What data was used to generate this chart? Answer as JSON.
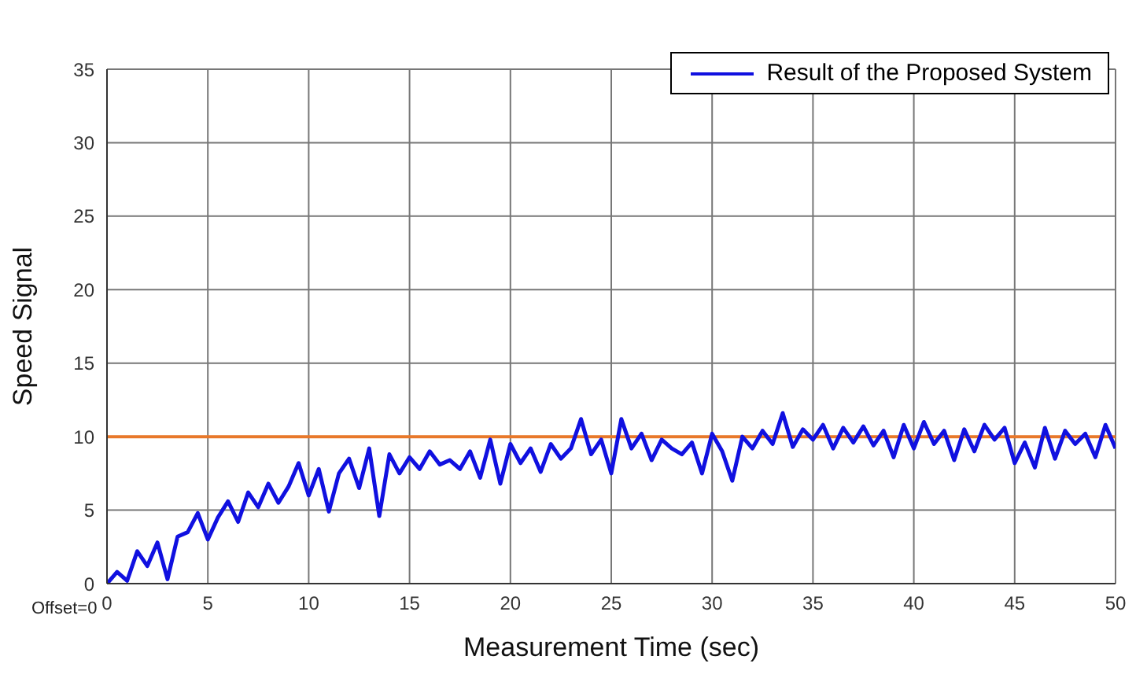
{
  "chart_data": {
    "type": "line",
    "xlabel": "Measurement Time (sec)",
    "ylabel": "Speed Signal",
    "annotations": [
      "Offset=0"
    ],
    "x": [
      0,
      0.5,
      1,
      1.5,
      2,
      2.5,
      3,
      3.5,
      4,
      4.5,
      5,
      5.5,
      6,
      6.5,
      7,
      7.5,
      8,
      8.5,
      9,
      9.5,
      10,
      10.5,
      11,
      11.5,
      12,
      12.5,
      13,
      13.5,
      14,
      14.5,
      15,
      15.5,
      16,
      16.5,
      17,
      17.5,
      18,
      18.5,
      19,
      19.5,
      20,
      20.5,
      21,
      21.5,
      22,
      22.5,
      23,
      23.5,
      24,
      24.5,
      25,
      25.5,
      26,
      26.5,
      27,
      27.5,
      28,
      28.5,
      29,
      29.5,
      30,
      30.5,
      31,
      31.5,
      32,
      32.5,
      33,
      33.5,
      34,
      34.5,
      35,
      35.5,
      36,
      36.5,
      37,
      37.5,
      38,
      38.5,
      39,
      39.5,
      40,
      40.5,
      41,
      41.5,
      42,
      42.5,
      43,
      43.5,
      44,
      44.5,
      45,
      45.5,
      46,
      46.5,
      47,
      47.5,
      48,
      48.5,
      49,
      49.5,
      50
    ],
    "series": [
      {
        "name": "Result of the Proposed System",
        "color": "#1010e0",
        "values": [
          0,
          0.8,
          0.2,
          2.2,
          1.2,
          2.8,
          0.3,
          3.2,
          3.5,
          4.8,
          3,
          4.5,
          5.6,
          4.2,
          6.2,
          5.2,
          6.8,
          5.5,
          6.6,
          8.2,
          6,
          7.8,
          4.9,
          7.5,
          8.5,
          6.5,
          9.2,
          4.6,
          8.8,
          7.5,
          8.6,
          7.8,
          9,
          8.1,
          8.4,
          7.8,
          9,
          7.2,
          9.8,
          6.8,
          9.5,
          8.2,
          9.2,
          7.6,
          9.5,
          8.5,
          9.2,
          11.2,
          8.8,
          9.8,
          7.5,
          11.2,
          9.2,
          10.2,
          8.4,
          9.8,
          9.2,
          8.8,
          9.6,
          7.5,
          10.2,
          9,
          7,
          10,
          9.2,
          10.4,
          9.5,
          11.6,
          9.3,
          10.5,
          9.8,
          10.8,
          9.2,
          10.6,
          9.6,
          10.7,
          9.4,
          10.4,
          8.6,
          10.8,
          9.2,
          11,
          9.5,
          10.4,
          8.4,
          10.5,
          9,
          10.8,
          9.8,
          10.6,
          8.2,
          9.6,
          7.9,
          10.6,
          8.5,
          10.4,
          9.5,
          10.2,
          8.6,
          10.8,
          9.2
        ]
      }
    ],
    "ref_lines": [
      {
        "axis": "y",
        "value": 10,
        "color": "#e8782a"
      }
    ],
    "xlim": [
      0,
      50
    ],
    "xticks": [
      0,
      5,
      10,
      15,
      20,
      25,
      30,
      35,
      40,
      45,
      50
    ],
    "ylim": [
      0,
      35
    ],
    "yticks": [
      0,
      5,
      10,
      15,
      20,
      25,
      30,
      35
    ],
    "grid": true,
    "legend": "top right",
    "marker": "none",
    "line_style": "solid"
  }
}
